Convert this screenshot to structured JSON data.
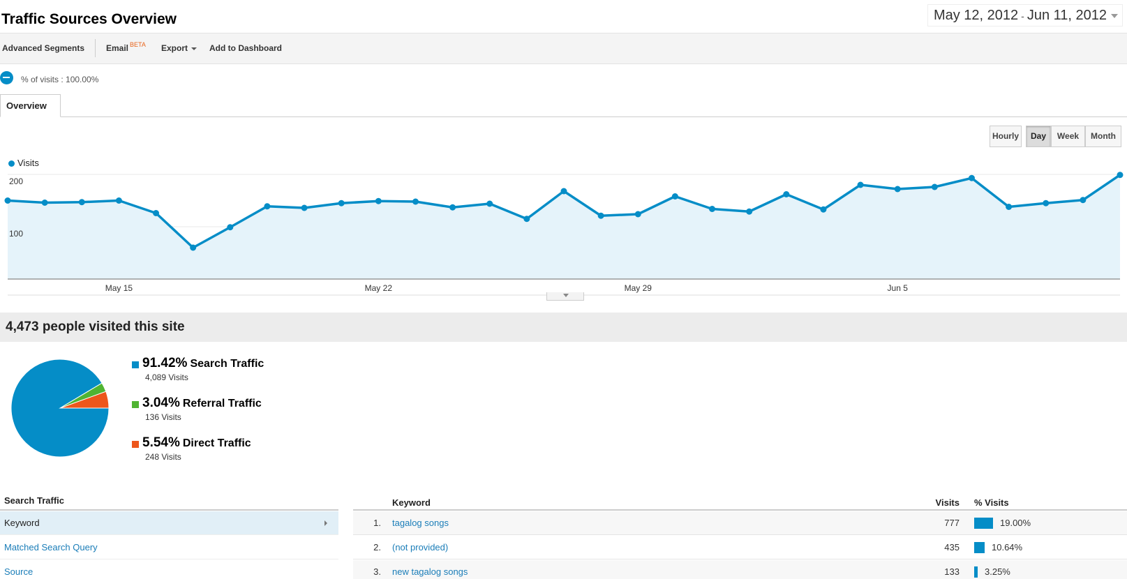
{
  "header": {
    "title": "Traffic Sources Overview",
    "date_start": "May 12, 2012",
    "date_sep": "-",
    "date_end": "Jun 11, 2012"
  },
  "toolbar": {
    "advanced_segments": "Advanced Segments",
    "email": "Email",
    "beta": "BETA",
    "export": "Export",
    "add_to_dashboard": "Add to Dashboard"
  },
  "segment": {
    "label": "% of visits : 100.00%"
  },
  "tabs": [
    {
      "label": "Overview"
    }
  ],
  "granularity": {
    "options": [
      "Hourly",
      "Day",
      "Week",
      "Month"
    ],
    "selected": "Day"
  },
  "chart_data": {
    "type": "area",
    "series": [
      {
        "name": "Visits",
        "color": "#058dc7",
        "values": [
          150,
          146,
          147,
          150,
          126,
          60,
          99,
          139,
          136,
          145,
          149,
          148,
          137,
          144,
          115,
          168,
          121,
          124,
          158,
          134,
          129,
          162,
          133,
          180,
          172,
          176,
          193,
          138,
          145,
          151,
          199
        ]
      }
    ],
    "x_start": "2012-05-12",
    "x_tick_labels": [
      "May 15",
      "May 22",
      "May 29",
      "Jun 5"
    ],
    "y_tick_labels": [
      "200",
      "100"
    ],
    "ylim": [
      0,
      200
    ],
    "grid": true
  },
  "summary": {
    "headline": "4,473 people visited this site"
  },
  "sources": [
    {
      "pct": "91.42%",
      "name": "Search Traffic",
      "visits": "4,089 Visits",
      "color": "#058dc7",
      "share": 91.42
    },
    {
      "pct": "3.04%",
      "name": "Referral Traffic",
      "visits": "136 Visits",
      "color": "#50b432",
      "share": 3.04
    },
    {
      "pct": "5.54%",
      "name": "Direct Traffic",
      "visits": "248 Visits",
      "color": "#ed561b",
      "share": 5.54
    }
  ],
  "search_traffic": {
    "header": "Search Traffic",
    "items": [
      "Keyword",
      "Matched Search Query",
      "Source"
    ],
    "selected": "Keyword"
  },
  "keyword_table": {
    "headers": {
      "keyword": "Keyword",
      "visits": "Visits",
      "pct_visits": "% Visits"
    },
    "rows": [
      {
        "rank": "1.",
        "keyword": "tagalog songs",
        "visits": "777",
        "pct": "19.00%",
        "share": 19.0
      },
      {
        "rank": "2.",
        "keyword": "(not provided)",
        "visits": "435",
        "pct": "10.64%",
        "share": 10.64
      },
      {
        "rank": "3.",
        "keyword": "new tagalog songs",
        "visits": "133",
        "pct": "3.25%",
        "share": 3.25
      }
    ]
  }
}
